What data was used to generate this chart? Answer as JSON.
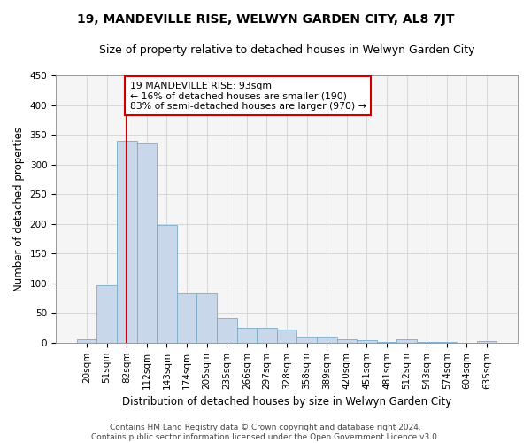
{
  "title": "19, MANDEVILLE RISE, WELWYN GARDEN CITY, AL8 7JT",
  "subtitle": "Size of property relative to detached houses in Welwyn Garden City",
  "xlabel": "Distribution of detached houses by size in Welwyn Garden City",
  "ylabel": "Number of detached properties",
  "footer_line1": "Contains HM Land Registry data © Crown copyright and database right 2024.",
  "footer_line2": "Contains public sector information licensed under the Open Government Licence v3.0.",
  "categories": [
    "20sqm",
    "51sqm",
    "82sqm",
    "112sqm",
    "143sqm",
    "174sqm",
    "205sqm",
    "235sqm",
    "266sqm",
    "297sqm",
    "328sqm",
    "358sqm",
    "389sqm",
    "420sqm",
    "451sqm",
    "481sqm",
    "512sqm",
    "543sqm",
    "574sqm",
    "604sqm",
    "635sqm"
  ],
  "values": [
    5,
    97,
    339,
    336,
    198,
    83,
    83,
    42,
    25,
    25,
    22,
    10,
    10,
    6,
    4,
    1,
    5,
    1,
    1,
    0,
    3
  ],
  "bar_color": "#c8d8ea",
  "bar_edge_color": "#7aaac8",
  "grid_color": "#cccccc",
  "vline_x": 2.0,
  "vline_color": "#cc0000",
  "annotation_text": "19 MANDEVILLE RISE: 93sqm\n← 16% of detached houses are smaller (190)\n83% of semi-detached houses are larger (970) →",
  "annotation_box_color": "white",
  "annotation_box_edge": "#cc0000",
  "ylim": [
    0,
    450
  ],
  "yticks": [
    0,
    50,
    100,
    150,
    200,
    250,
    300,
    350,
    400,
    450
  ],
  "background_color": "#ffffff",
  "plot_bg_color": "#f5f5f5",
  "title_fontsize": 10,
  "subtitle_fontsize": 9,
  "axis_label_fontsize": 8.5,
  "tick_fontsize": 7.5,
  "annotation_fontsize": 7.8,
  "footer_fontsize": 6.5
}
